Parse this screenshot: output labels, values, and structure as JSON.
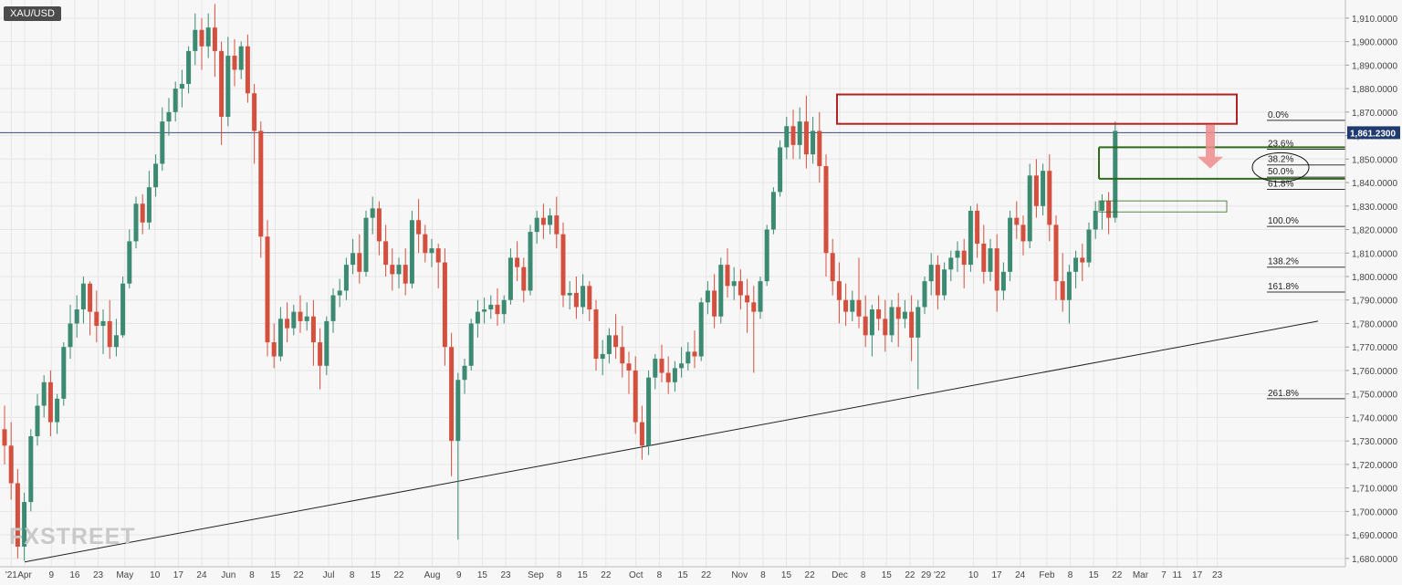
{
  "window": {
    "symbol": "XAU/USD",
    "watermark": "FXSTREET"
  },
  "colors": {
    "up": "#3c8a72",
    "down": "#d4503e",
    "grid": "#e6e6e6",
    "axis_text": "#444444",
    "current_line": "#3a4a7a",
    "price_badge_bg": "#1f3a6e",
    "resistance_box": "#b22222",
    "green_zone": "#2e6b1e",
    "trendline": "#222222",
    "arrow": "#f08c8c",
    "fib_line": "#333333"
  },
  "chart_data": {
    "type": "candlestick",
    "title": "XAU/USD",
    "y_axis": {
      "min": 1678,
      "max": 1915,
      "ticks": [
        "1,680.0000",
        "1,690.0000",
        "1,700.0000",
        "1,710.0000",
        "1,720.0000",
        "1,730.0000",
        "1,740.0000",
        "1,750.0000",
        "1,760.0000",
        "1,770.0000",
        "1,780.0000",
        "1,790.0000",
        "1,800.0000",
        "1,810.0000",
        "1,820.0000",
        "1,830.0000",
        "1,840.0000",
        "1,850.0000",
        "1,860.0000",
        "1,870.0000",
        "1,880.0000",
        "1,890.0000",
        "1,900.0000",
        "1,910.0000"
      ],
      "tick_values": [
        1680,
        1690,
        1700,
        1710,
        1720,
        1730,
        1740,
        1750,
        1760,
        1770,
        1780,
        1790,
        1800,
        1810,
        1820,
        1830,
        1840,
        1850,
        1860,
        1870,
        1880,
        1890,
        1900,
        1910
      ]
    },
    "x_axis": {
      "labels": [
        "'21",
        "Apr",
        "9",
        "16",
        "23",
        "May",
        "10",
        "17",
        "24",
        "Jun",
        "8",
        "15",
        "22",
        "Jul",
        "8",
        "15",
        "22",
        "Aug",
        "9",
        "15",
        "23",
        "Sep",
        "8",
        "15",
        "22",
        "Oct",
        "8",
        "15",
        "22",
        "Nov",
        "8",
        "15",
        "22",
        "Dec",
        "8",
        "15",
        "22",
        "29 '22",
        "10",
        "17",
        "24",
        "Feb",
        "8",
        "15",
        "22",
        "Mar",
        "7",
        "11",
        "17",
        "23"
      ],
      "label_days": [
        -4,
        0,
        8,
        15,
        22,
        30,
        39,
        46,
        53,
        61,
        68,
        75,
        82,
        91,
        98,
        105,
        112,
        122,
        130,
        137,
        144,
        153,
        160,
        167,
        174,
        183,
        190,
        197,
        204,
        214,
        221,
        228,
        235,
        244,
        251,
        258,
        265,
        272,
        284,
        291,
        298,
        306,
        313,
        320,
        327,
        334,
        341,
        345,
        351,
        357
      ]
    },
    "current_price": {
      "value": 1861.23,
      "label": "1,861.2300"
    },
    "fibonacci": {
      "levels": [
        {
          "label": "0.0%",
          "price": 1866.5
        },
        {
          "label": "23.6%",
          "price": 1854.2
        },
        {
          "label": "38.2%",
          "price": 1847.5
        },
        {
          "label": "50.0%",
          "price": 1842.3
        },
        {
          "label": "61.8%",
          "price": 1837.1
        },
        {
          "label": "100.0%",
          "price": 1821.3
        },
        {
          "label": "138.2%",
          "price": 1804.0
        },
        {
          "label": "161.8%",
          "price": 1793.4
        },
        {
          "label": "261.8%",
          "price": 1748.0
        }
      ]
    },
    "annotations": {
      "resistance_box": {
        "price_top": 1877.5,
        "price_bottom": 1865.0
      },
      "green_zone": {
        "price_top": 1855.0,
        "price_bottom": 1841.6
      },
      "small_box": {
        "price_top": 1832.2,
        "price_bottom": 1827.5
      },
      "trendline": {
        "start": {
          "price": 1678.5
        },
        "end": {
          "price": 1781.0
        }
      }
    },
    "candles": [
      {
        "o": 1735,
        "h": 1745,
        "c": 1728,
        "l": 1720
      },
      {
        "o": 1728,
        "h": 1738,
        "c": 1712,
        "l": 1705
      },
      {
        "o": 1712,
        "h": 1718,
        "c": 1685,
        "l": 1680
      },
      {
        "o": 1685,
        "h": 1708,
        "c": 1704,
        "l": 1679
      },
      {
        "o": 1704,
        "h": 1735,
        "c": 1732,
        "l": 1700
      },
      {
        "o": 1732,
        "h": 1750,
        "c": 1745,
        "l": 1728
      },
      {
        "o": 1745,
        "h": 1758,
        "c": 1755,
        "l": 1740
      },
      {
        "o": 1755,
        "h": 1760,
        "c": 1738,
        "l": 1732
      },
      {
        "o": 1738,
        "h": 1750,
        "c": 1748,
        "l": 1733
      },
      {
        "o": 1748,
        "h": 1772,
        "c": 1770,
        "l": 1745
      },
      {
        "o": 1770,
        "h": 1788,
        "c": 1780,
        "l": 1765
      },
      {
        "o": 1780,
        "h": 1792,
        "c": 1786,
        "l": 1774
      },
      {
        "o": 1786,
        "h": 1800,
        "c": 1797,
        "l": 1780
      },
      {
        "o": 1797,
        "h": 1798,
        "c": 1785,
        "l": 1775
      },
      {
        "o": 1785,
        "h": 1794,
        "c": 1779,
        "l": 1772
      },
      {
        "o": 1779,
        "h": 1786,
        "c": 1781,
        "l": 1767
      },
      {
        "o": 1781,
        "h": 1790,
        "c": 1770,
        "l": 1765
      },
      {
        "o": 1770,
        "h": 1782,
        "c": 1775,
        "l": 1766
      },
      {
        "o": 1775,
        "h": 1800,
        "c": 1797,
        "l": 1774
      },
      {
        "o": 1797,
        "h": 1820,
        "c": 1815,
        "l": 1795
      },
      {
        "o": 1815,
        "h": 1834,
        "c": 1831,
        "l": 1812
      },
      {
        "o": 1831,
        "h": 1835,
        "c": 1823,
        "l": 1818
      },
      {
        "o": 1823,
        "h": 1845,
        "c": 1838,
        "l": 1820
      },
      {
        "o": 1838,
        "h": 1852,
        "c": 1848,
        "l": 1834
      },
      {
        "o": 1848,
        "h": 1872,
        "c": 1866,
        "l": 1845
      },
      {
        "o": 1866,
        "h": 1876,
        "c": 1870,
        "l": 1860
      },
      {
        "o": 1870,
        "h": 1883,
        "c": 1880,
        "l": 1866
      },
      {
        "o": 1880,
        "h": 1888,
        "c": 1882,
        "l": 1872
      },
      {
        "o": 1882,
        "h": 1898,
        "c": 1896,
        "l": 1878
      },
      {
        "o": 1896,
        "h": 1912,
        "c": 1905,
        "l": 1890
      },
      {
        "o": 1905,
        "h": 1910,
        "c": 1898,
        "l": 1888
      },
      {
        "o": 1898,
        "h": 1912,
        "c": 1906,
        "l": 1893
      },
      {
        "o": 1906,
        "h": 1916,
        "c": 1896,
        "l": 1885
      },
      {
        "o": 1896,
        "h": 1900,
        "c": 1868,
        "l": 1856
      },
      {
        "o": 1868,
        "h": 1902,
        "c": 1894,
        "l": 1864
      },
      {
        "o": 1894,
        "h": 1901,
        "c": 1888,
        "l": 1881
      },
      {
        "o": 1888,
        "h": 1900,
        "c": 1898,
        "l": 1884
      },
      {
        "o": 1898,
        "h": 1903,
        "c": 1878,
        "l": 1874
      },
      {
        "o": 1878,
        "h": 1882,
        "c": 1862,
        "l": 1848
      },
      {
        "o": 1862,
        "h": 1866,
        "c": 1817,
        "l": 1808
      },
      {
        "o": 1817,
        "h": 1824,
        "c": 1772,
        "l": 1766
      },
      {
        "o": 1772,
        "h": 1780,
        "c": 1766,
        "l": 1761
      },
      {
        "o": 1766,
        "h": 1787,
        "c": 1782,
        "l": 1764
      },
      {
        "o": 1782,
        "h": 1789,
        "c": 1778,
        "l": 1772
      },
      {
        "o": 1778,
        "h": 1788,
        "c": 1785,
        "l": 1775
      },
      {
        "o": 1785,
        "h": 1792,
        "c": 1781,
        "l": 1776
      },
      {
        "o": 1781,
        "h": 1789,
        "c": 1783,
        "l": 1777
      },
      {
        "o": 1783,
        "h": 1790,
        "c": 1772,
        "l": 1762
      },
      {
        "o": 1772,
        "h": 1778,
        "c": 1762,
        "l": 1752
      },
      {
        "o": 1762,
        "h": 1783,
        "c": 1781,
        "l": 1758
      },
      {
        "o": 1781,
        "h": 1795,
        "c": 1792,
        "l": 1776
      },
      {
        "o": 1792,
        "h": 1799,
        "c": 1794,
        "l": 1787
      },
      {
        "o": 1794,
        "h": 1808,
        "c": 1805,
        "l": 1790
      },
      {
        "o": 1805,
        "h": 1816,
        "c": 1810,
        "l": 1801
      },
      {
        "o": 1810,
        "h": 1818,
        "c": 1802,
        "l": 1797
      },
      {
        "o": 1802,
        "h": 1828,
        "c": 1825,
        "l": 1800
      },
      {
        "o": 1825,
        "h": 1834,
        "c": 1829,
        "l": 1818
      },
      {
        "o": 1829,
        "h": 1832,
        "c": 1815,
        "l": 1809
      },
      {
        "o": 1815,
        "h": 1822,
        "c": 1805,
        "l": 1800
      },
      {
        "o": 1805,
        "h": 1812,
        "c": 1801,
        "l": 1794
      },
      {
        "o": 1801,
        "h": 1808,
        "c": 1805,
        "l": 1795
      },
      {
        "o": 1805,
        "h": 1812,
        "c": 1797,
        "l": 1792
      },
      {
        "o": 1797,
        "h": 1828,
        "c": 1824,
        "l": 1795
      },
      {
        "o": 1824,
        "h": 1833,
        "c": 1818,
        "l": 1810
      },
      {
        "o": 1818,
        "h": 1822,
        "c": 1810,
        "l": 1806
      },
      {
        "o": 1810,
        "h": 1816,
        "c": 1812,
        "l": 1804
      },
      {
        "o": 1812,
        "h": 1814,
        "c": 1806,
        "l": 1795
      },
      {
        "o": 1806,
        "h": 1812,
        "c": 1770,
        "l": 1762
      },
      {
        "o": 1770,
        "h": 1776,
        "c": 1730,
        "l": 1715
      },
      {
        "o": 1730,
        "h": 1759,
        "c": 1756,
        "l": 1688
      },
      {
        "o": 1756,
        "h": 1765,
        "c": 1762,
        "l": 1750
      },
      {
        "o": 1762,
        "h": 1782,
        "c": 1780,
        "l": 1760
      },
      {
        "o": 1780,
        "h": 1790,
        "c": 1785,
        "l": 1774
      },
      {
        "o": 1785,
        "h": 1791,
        "c": 1786,
        "l": 1780
      },
      {
        "o": 1786,
        "h": 1792,
        "c": 1788,
        "l": 1782
      },
      {
        "o": 1788,
        "h": 1795,
        "c": 1784,
        "l": 1779
      },
      {
        "o": 1784,
        "h": 1792,
        "c": 1790,
        "l": 1780
      },
      {
        "o": 1790,
        "h": 1812,
        "c": 1808,
        "l": 1788
      },
      {
        "o": 1808,
        "h": 1815,
        "c": 1804,
        "l": 1798
      },
      {
        "o": 1804,
        "h": 1808,
        "c": 1794,
        "l": 1789
      },
      {
        "o": 1794,
        "h": 1822,
        "c": 1819,
        "l": 1792
      },
      {
        "o": 1819,
        "h": 1828,
        "c": 1825,
        "l": 1814
      },
      {
        "o": 1825,
        "h": 1831,
        "c": 1822,
        "l": 1816
      },
      {
        "o": 1822,
        "h": 1829,
        "c": 1826,
        "l": 1818
      },
      {
        "o": 1826,
        "h": 1834,
        "c": 1818,
        "l": 1812
      },
      {
        "o": 1818,
        "h": 1823,
        "c": 1792,
        "l": 1787
      },
      {
        "o": 1792,
        "h": 1798,
        "c": 1793,
        "l": 1786
      },
      {
        "o": 1793,
        "h": 1800,
        "c": 1787,
        "l": 1782
      },
      {
        "o": 1787,
        "h": 1801,
        "c": 1796,
        "l": 1784
      },
      {
        "o": 1796,
        "h": 1798,
        "c": 1786,
        "l": 1781
      },
      {
        "o": 1786,
        "h": 1790,
        "c": 1765,
        "l": 1760
      },
      {
        "o": 1765,
        "h": 1773,
        "c": 1767,
        "l": 1758
      },
      {
        "o": 1767,
        "h": 1778,
        "c": 1775,
        "l": 1763
      },
      {
        "o": 1775,
        "h": 1784,
        "c": 1770,
        "l": 1765
      },
      {
        "o": 1770,
        "h": 1779,
        "c": 1763,
        "l": 1757
      },
      {
        "o": 1763,
        "h": 1768,
        "c": 1760,
        "l": 1750
      },
      {
        "o": 1760,
        "h": 1766,
        "c": 1738,
        "l": 1733
      },
      {
        "o": 1738,
        "h": 1745,
        "c": 1728,
        "l": 1722
      },
      {
        "o": 1728,
        "h": 1760,
        "c": 1757,
        "l": 1724
      },
      {
        "o": 1757,
        "h": 1767,
        "c": 1765,
        "l": 1752
      },
      {
        "o": 1765,
        "h": 1771,
        "c": 1759,
        "l": 1755
      },
      {
        "o": 1759,
        "h": 1766,
        "c": 1755,
        "l": 1750
      },
      {
        "o": 1755,
        "h": 1764,
        "c": 1761,
        "l": 1751
      },
      {
        "o": 1761,
        "h": 1770,
        "c": 1763,
        "l": 1757
      },
      {
        "o": 1763,
        "h": 1772,
        "c": 1768,
        "l": 1760
      },
      {
        "o": 1768,
        "h": 1777,
        "c": 1766,
        "l": 1761
      },
      {
        "o": 1766,
        "h": 1791,
        "c": 1789,
        "l": 1764
      },
      {
        "o": 1789,
        "h": 1798,
        "c": 1794,
        "l": 1784
      },
      {
        "o": 1794,
        "h": 1801,
        "c": 1783,
        "l": 1778
      },
      {
        "o": 1783,
        "h": 1808,
        "c": 1805,
        "l": 1780
      },
      {
        "o": 1805,
        "h": 1812,
        "c": 1796,
        "l": 1791
      },
      {
        "o": 1796,
        "h": 1804,
        "c": 1798,
        "l": 1790
      },
      {
        "o": 1798,
        "h": 1803,
        "c": 1792,
        "l": 1786
      },
      {
        "o": 1792,
        "h": 1799,
        "c": 1789,
        "l": 1776
      },
      {
        "o": 1789,
        "h": 1796,
        "c": 1785,
        "l": 1759
      },
      {
        "o": 1785,
        "h": 1800,
        "c": 1798,
        "l": 1782
      },
      {
        "o": 1798,
        "h": 1822,
        "c": 1820,
        "l": 1796
      },
      {
        "o": 1820,
        "h": 1838,
        "c": 1836,
        "l": 1818
      },
      {
        "o": 1836,
        "h": 1858,
        "c": 1855,
        "l": 1834
      },
      {
        "o": 1855,
        "h": 1868,
        "c": 1864,
        "l": 1850
      },
      {
        "o": 1864,
        "h": 1871,
        "c": 1856,
        "l": 1850
      },
      {
        "o": 1856,
        "h": 1872,
        "c": 1866,
        "l": 1850
      },
      {
        "o": 1866,
        "h": 1877,
        "c": 1852,
        "l": 1846
      },
      {
        "o": 1852,
        "h": 1868,
        "c": 1862,
        "l": 1848
      },
      {
        "o": 1862,
        "h": 1870,
        "c": 1847,
        "l": 1840
      },
      {
        "o": 1847,
        "h": 1852,
        "c": 1810,
        "l": 1800
      },
      {
        "o": 1810,
        "h": 1816,
        "c": 1798,
        "l": 1792
      },
      {
        "o": 1798,
        "h": 1806,
        "c": 1790,
        "l": 1780
      },
      {
        "o": 1790,
        "h": 1797,
        "c": 1785,
        "l": 1779
      },
      {
        "o": 1785,
        "h": 1794,
        "c": 1790,
        "l": 1781
      },
      {
        "o": 1790,
        "h": 1808,
        "c": 1783,
        "l": 1778
      },
      {
        "o": 1783,
        "h": 1792,
        "c": 1775,
        "l": 1770
      },
      {
        "o": 1775,
        "h": 1788,
        "c": 1786,
        "l": 1766
      },
      {
        "o": 1786,
        "h": 1792,
        "c": 1782,
        "l": 1777
      },
      {
        "o": 1782,
        "h": 1790,
        "c": 1775,
        "l": 1768
      },
      {
        "o": 1775,
        "h": 1790,
        "c": 1787,
        "l": 1772
      },
      {
        "o": 1787,
        "h": 1793,
        "c": 1782,
        "l": 1770
      },
      {
        "o": 1782,
        "h": 1790,
        "c": 1785,
        "l": 1778
      },
      {
        "o": 1785,
        "h": 1792,
        "c": 1774,
        "l": 1764
      },
      {
        "o": 1774,
        "h": 1790,
        "c": 1787,
        "l": 1752
      },
      {
        "o": 1787,
        "h": 1800,
        "c": 1798,
        "l": 1784
      },
      {
        "o": 1798,
        "h": 1810,
        "c": 1805,
        "l": 1792
      },
      {
        "o": 1805,
        "h": 1809,
        "c": 1792,
        "l": 1786
      },
      {
        "o": 1792,
        "h": 1806,
        "c": 1803,
        "l": 1790
      },
      {
        "o": 1803,
        "h": 1811,
        "c": 1808,
        "l": 1798
      },
      {
        "o": 1808,
        "h": 1815,
        "c": 1811,
        "l": 1802
      },
      {
        "o": 1811,
        "h": 1816,
        "c": 1805,
        "l": 1795
      },
      {
        "o": 1805,
        "h": 1830,
        "c": 1828,
        "l": 1802
      },
      {
        "o": 1828,
        "h": 1831,
        "c": 1814,
        "l": 1808
      },
      {
        "o": 1814,
        "h": 1822,
        "c": 1802,
        "l": 1797
      },
      {
        "o": 1802,
        "h": 1816,
        "c": 1812,
        "l": 1798
      },
      {
        "o": 1812,
        "h": 1818,
        "c": 1794,
        "l": 1785
      },
      {
        "o": 1794,
        "h": 1806,
        "c": 1802,
        "l": 1790
      },
      {
        "o": 1802,
        "h": 1828,
        "c": 1825,
        "l": 1798
      },
      {
        "o": 1825,
        "h": 1832,
        "c": 1822,
        "l": 1816
      },
      {
        "o": 1822,
        "h": 1826,
        "c": 1815,
        "l": 1809
      },
      {
        "o": 1815,
        "h": 1848,
        "c": 1843,
        "l": 1812
      },
      {
        "o": 1843,
        "h": 1850,
        "c": 1830,
        "l": 1825
      },
      {
        "o": 1830,
        "h": 1848,
        "c": 1845,
        "l": 1826
      },
      {
        "o": 1845,
        "h": 1852,
        "c": 1822,
        "l": 1815
      },
      {
        "o": 1822,
        "h": 1826,
        "c": 1798,
        "l": 1790
      },
      {
        "o": 1798,
        "h": 1810,
        "c": 1790,
        "l": 1785
      },
      {
        "o": 1790,
        "h": 1805,
        "c": 1802,
        "l": 1780
      },
      {
        "o": 1802,
        "h": 1811,
        "c": 1808,
        "l": 1795
      },
      {
        "o": 1808,
        "h": 1814,
        "c": 1806,
        "l": 1798
      },
      {
        "o": 1806,
        "h": 1823,
        "c": 1820,
        "l": 1804
      },
      {
        "o": 1820,
        "h": 1832,
        "c": 1828,
        "l": 1816
      },
      {
        "o": 1828,
        "h": 1835,
        "c": 1832,
        "l": 1820
      },
      {
        "o": 1832,
        "h": 1836,
        "c": 1825,
        "l": 1818
      },
      {
        "o": 1825,
        "h": 1866,
        "c": 1862,
        "l": 1823
      }
    ]
  }
}
